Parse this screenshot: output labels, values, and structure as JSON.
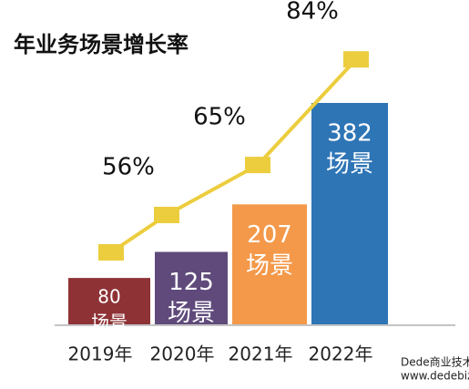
{
  "chart_data": {
    "type": "bar",
    "title": "年业务场景增长率",
    "categories": [
      "2019年",
      "2020年",
      "2021年",
      "2022年"
    ],
    "series": [
      {
        "type": "bar",
        "values": [
          80,
          125,
          207,
          382
        ],
        "unit": "场景",
        "colors": [
          "#8e3236",
          "#5f4a7b",
          "#f4994a",
          "#2e75b6"
        ]
      },
      {
        "type": "line",
        "values": [
          null,
          56,
          65,
          84
        ],
        "value_labels": [
          null,
          "56%",
          "65%",
          "84%"
        ],
        "color": "#eccd3e"
      }
    ],
    "watermark": [
      "Dede商业技术支持",
      "www.dedebiz.com"
    ]
  }
}
